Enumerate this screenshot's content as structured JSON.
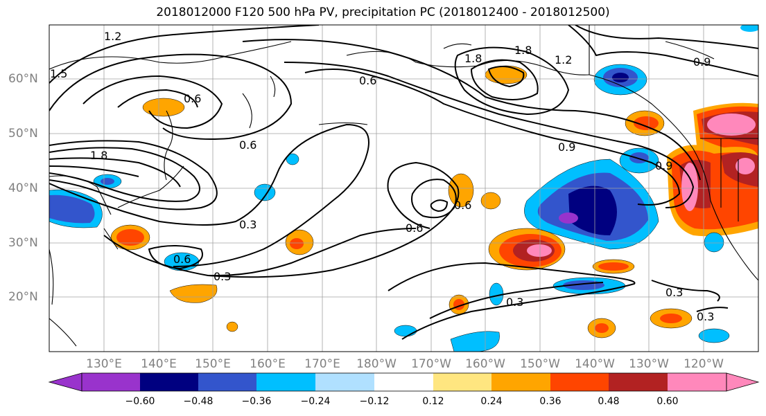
{
  "title": "2018012000 F120 500 hPa PV, precipitation PC (2018012400 - 2018012500)",
  "lat_labels": [
    "60°N",
    "50°N",
    "40°N",
    "30°N",
    "20°N"
  ],
  "lon_labels": [
    "130°E",
    "140°E",
    "150°E",
    "160°E",
    "170°E",
    "180°W",
    "170°W",
    "160°W",
    "150°W",
    "140°W",
    "130°W",
    "120°W"
  ],
  "contour_labels": [
    "1.2",
    "1.5",
    "0.6",
    "1.8",
    "0.6",
    "1.8",
    "1.2",
    "0.9",
    "0.6",
    "0.9",
    "0.9",
    "0.3",
    "0.6",
    "0.6",
    "0.6",
    "0.3",
    "0.3",
    "0.3",
    "0.3",
    "1.8"
  ],
  "colorbar": {
    "tick_labels": [
      "−0.60",
      "−0.48",
      "−0.36",
      "−0.24",
      "−0.12",
      "0.12",
      "0.24",
      "0.36",
      "0.48",
      "0.60"
    ],
    "colors": [
      "#9933cc",
      "#000080",
      "#3355cc",
      "#00bfff",
      "#b0e0ff",
      "#ffffff",
      "#ffe680",
      "#ffa500",
      "#ff4500",
      "#b22222",
      "#ff88bb"
    ]
  }
}
